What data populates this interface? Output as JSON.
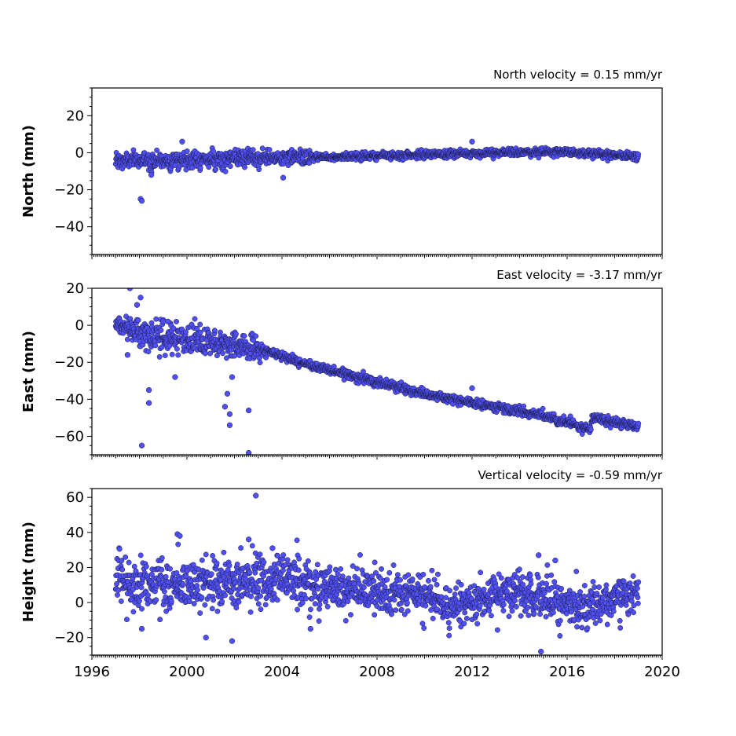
{
  "colors": {
    "marker_fill": "#4f4ff5",
    "marker_edge": "#1a1a3a",
    "frame": "#000000"
  },
  "chart_data": [
    {
      "type": "scatter",
      "panel": "north",
      "title": "North velocity = 0.15 mm/yr",
      "xlabel": "",
      "ylabel": "North (mm)",
      "xlim": [
        1996,
        2020
      ],
      "ylim": [
        -55,
        35
      ],
      "yticks": [
        20,
        0,
        -20,
        -40
      ],
      "ytick_labels": [
        "20",
        "0",
        "−20",
        "−40"
      ],
      "x_tick_labels_visible": false,
      "velocity_mm_per_yr": 0.15,
      "x_start": 1997.0,
      "x_end": 2019.0,
      "trend": [
        [
          1997.0,
          -4.5
        ],
        [
          2005.0,
          -2.5
        ],
        [
          2010.0,
          -1.0
        ],
        [
          2015.0,
          0.5
        ],
        [
          2017.0,
          0.0
        ],
        [
          2019.0,
          -2.0
        ]
      ],
      "noise_sd": [
        [
          1997.0,
          2.4
        ],
        [
          2005.0,
          2.0
        ],
        [
          2005.5,
          1.0
        ],
        [
          2019.0,
          1.1
        ]
      ],
      "outliers": [
        [
          1998.05,
          -25
        ],
        [
          1998.1,
          -26
        ],
        [
          2004.05,
          -13.5
        ],
        [
          1998.5,
          -12
        ],
        [
          2012.0,
          6
        ],
        [
          1999.8,
          6
        ]
      ],
      "grid": false,
      "legend": "none"
    },
    {
      "type": "scatter",
      "panel": "east",
      "title": "East velocity = -3.17 mm/yr",
      "xlabel": "",
      "ylabel": "East (mm)",
      "xlim": [
        1996,
        2020
      ],
      "ylim": [
        -70,
        20
      ],
      "yticks": [
        20,
        0,
        -20,
        -40,
        -60
      ],
      "ytick_labels": [
        "20",
        "0",
        "−20",
        "−40",
        "−60"
      ],
      "x_tick_labels_visible": false,
      "velocity_mm_per_yr": -3.17,
      "x_start": 1997.0,
      "x_end": 2019.0,
      "trend": [
        [
          1997.0,
          1.0
        ],
        [
          1998.0,
          -4.0
        ],
        [
          2000.0,
          -8.0
        ],
        [
          2002.9,
          -12.0
        ],
        [
          2005.0,
          -21.0
        ],
        [
          2010.0,
          -37.0
        ],
        [
          2015.0,
          -49.0
        ],
        [
          2017.0,
          -56.0
        ],
        [
          2017.05,
          -50.0
        ],
        [
          2019.0,
          -55.0
        ]
      ],
      "noise_sd": [
        [
          1997.0,
          1.5
        ],
        [
          1998.0,
          4.0
        ],
        [
          2003.0,
          3.5
        ],
        [
          2003.3,
          1.2
        ],
        [
          2019.0,
          1.2
        ]
      ],
      "outliers": [
        [
          1997.6,
          20
        ],
        [
          1998.05,
          15
        ],
        [
          1997.9,
          11
        ],
        [
          1998.4,
          -42
        ],
        [
          1998.4,
          -35
        ],
        [
          1998.1,
          -65
        ],
        [
          2001.8,
          -48
        ],
        [
          2001.8,
          -54
        ],
        [
          2001.6,
          -44
        ],
        [
          2002.6,
          -69
        ],
        [
          2002.6,
          -46
        ],
        [
          2001.7,
          -37
        ],
        [
          2001.9,
          -28
        ],
        [
          1999.5,
          -28
        ],
        [
          1999.0,
          2
        ],
        [
          1999.2,
          2
        ],
        [
          1997.5,
          -16
        ],
        [
          2012.0,
          -34
        ]
      ],
      "grid": false,
      "legend": "none"
    },
    {
      "type": "scatter",
      "panel": "height",
      "title": "Vertical velocity = -0.59 mm/yr",
      "xlabel": "",
      "ylabel": "Height (mm)",
      "xlim": [
        1996,
        2020
      ],
      "ylim": [
        -30,
        65
      ],
      "yticks": [
        60,
        40,
        20,
        0,
        -20
      ],
      "ytick_labels": [
        "60",
        "40",
        "20",
        "0",
        "−20"
      ],
      "xticks": [
        1996,
        2000,
        2004,
        2008,
        2012,
        2016,
        2020
      ],
      "xtick_labels": [
        "1996",
        "2000",
        "2004",
        "2008",
        "2012",
        "2016",
        "2020"
      ],
      "x_tick_labels_visible": true,
      "velocity_mm_per_yr": -0.59,
      "x_start": 1997.0,
      "x_end": 2019.0,
      "trend": [
        [
          1997.0,
          12
        ],
        [
          2000.0,
          10
        ],
        [
          2003.0,
          12
        ],
        [
          2004.0,
          15
        ],
        [
          2006.0,
          8
        ],
        [
          2010.0,
          3
        ],
        [
          2011.0,
          -2
        ],
        [
          2013.0,
          4
        ],
        [
          2015.0,
          5
        ],
        [
          2016.5,
          -3
        ],
        [
          2017.0,
          -1
        ],
        [
          2018.0,
          2
        ],
        [
          2019.0,
          5
        ]
      ],
      "noise_sd": [
        [
          1997.0,
          8.0
        ],
        [
          2005.0,
          7.0
        ],
        [
          2010.0,
          6.0
        ],
        [
          2019.0,
          6.0
        ]
      ],
      "outliers": [
        [
          2002.9,
          61
        ],
        [
          1999.6,
          39
        ],
        [
          1999.7,
          38
        ],
        [
          2002.6,
          36
        ],
        [
          2003.6,
          31
        ],
        [
          2001.9,
          -22
        ],
        [
          2000.8,
          -20
        ],
        [
          2014.9,
          -28
        ],
        [
          2015.5,
          24
        ],
        [
          2014.8,
          27
        ],
        [
          1998.1,
          -15
        ],
        [
          2005.2,
          -15
        ]
      ],
      "grid": false,
      "legend": "none"
    }
  ]
}
